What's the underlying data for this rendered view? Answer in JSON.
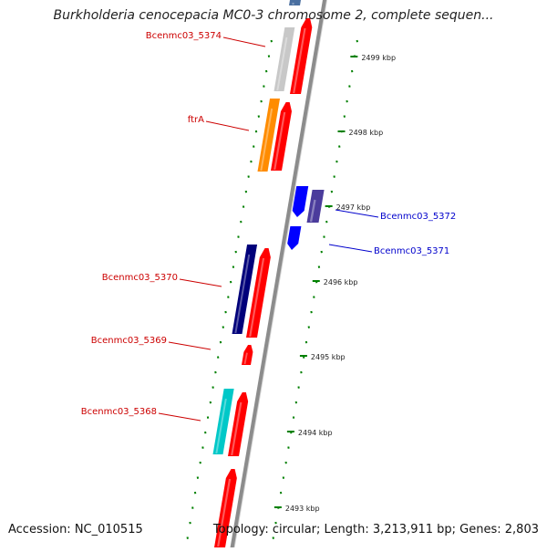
{
  "header": {
    "title": "Burkholderia cenocepacia MC0-3 chromosome 2, complete sequen..."
  },
  "footer": {
    "accession": "Accession: NC_010515",
    "summary": "Topology: circular; Length: 3,213,911 bp; Genes: 2,803"
  },
  "colors": {
    "forward_gene": "#ff0000",
    "reverse_label": "#cc0000",
    "forward_label": "#0000cc",
    "backbone": "#8c8c8c",
    "tick": "#008000"
  },
  "scale": {
    "ticks": [
      {
        "label": "2499 kbp"
      },
      {
        "label": "2498 kbp"
      },
      {
        "label": "2497 kbp"
      },
      {
        "label": "2496 kbp"
      },
      {
        "label": "2495 kbp"
      },
      {
        "label": "2494 kbp"
      },
      {
        "label": "2493 kbp"
      }
    ]
  },
  "genes": [
    {
      "label": "Bcenmc03_5374",
      "color": "#c8c8c8"
    },
    {
      "label": "ftrA",
      "color": "#ff8c00"
    },
    {
      "label": "Bcenmc03_5372",
      "color": "#4b3c9c"
    },
    {
      "label": "Bcenmc03_5371",
      "color": "#0000ff"
    },
    {
      "label": "Bcenmc03_5370",
      "color": "#00007a"
    },
    {
      "label": "Bcenmc03_5369",
      "color": "#ff0000"
    },
    {
      "label": "Bcenmc03_5368",
      "color": "#00c8c8"
    }
  ]
}
